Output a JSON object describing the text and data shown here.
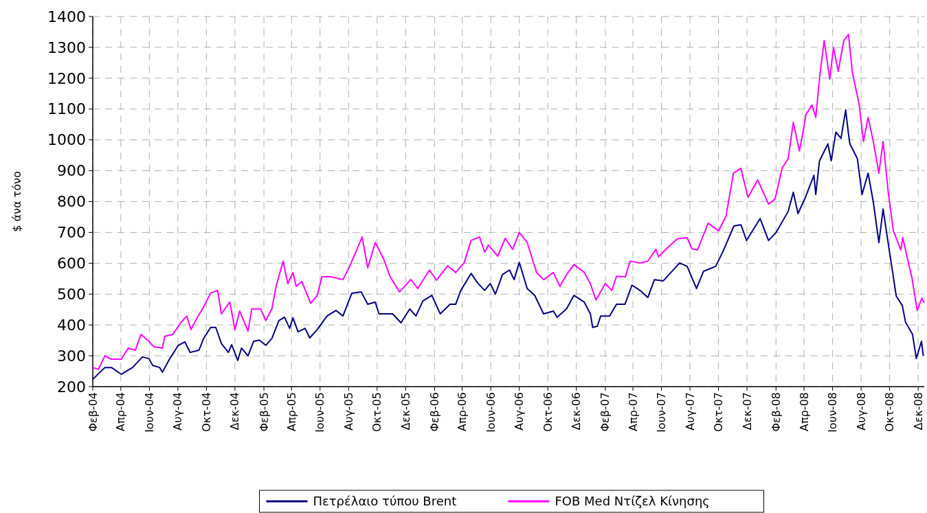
{
  "chart_data": {
    "type": "line",
    "ylabel": "$ άνα τόνο",
    "xlim": [
      "2004-02-01",
      "2008-12-14"
    ],
    "ylim": [
      200,
      1400
    ],
    "yticks": [
      200,
      300,
      400,
      500,
      600,
      700,
      800,
      900,
      1000,
      1100,
      1200,
      1300,
      1400
    ],
    "xticks": [
      {
        "value": "2004-02-01",
        "label": "Φεβ-04"
      },
      {
        "value": "2004-04-01",
        "label": "Απρ-04"
      },
      {
        "value": "2004-06-01",
        "label": "Ιουν-04"
      },
      {
        "value": "2004-08-01",
        "label": "Αυγ-04"
      },
      {
        "value": "2004-10-01",
        "label": "Οκτ-04"
      },
      {
        "value": "2004-12-01",
        "label": "Δεκ-04"
      },
      {
        "value": "2005-02-01",
        "label": "Φεβ-05"
      },
      {
        "value": "2005-04-01",
        "label": "Απρ-05"
      },
      {
        "value": "2005-06-01",
        "label": "Ιουν-05"
      },
      {
        "value": "2005-08-01",
        "label": "Αυγ-05"
      },
      {
        "value": "2005-10-01",
        "label": "Οκτ-05"
      },
      {
        "value": "2005-12-01",
        "label": "Δεκ-05"
      },
      {
        "value": "2006-02-01",
        "label": "Φεβ-06"
      },
      {
        "value": "2006-04-01",
        "label": "Απρ-06"
      },
      {
        "value": "2006-06-01",
        "label": "Ιουν-06"
      },
      {
        "value": "2006-08-01",
        "label": "Αυγ-06"
      },
      {
        "value": "2006-10-01",
        "label": "Οκτ-06"
      },
      {
        "value": "2006-12-01",
        "label": "Δεκ-06"
      },
      {
        "value": "2007-02-01",
        "label": "Φεβ-07"
      },
      {
        "value": "2007-04-01",
        "label": "Απρ-07"
      },
      {
        "value": "2007-06-01",
        "label": "Ιουν-07"
      },
      {
        "value": "2007-08-01",
        "label": "Αυγ-07"
      },
      {
        "value": "2007-10-01",
        "label": "Οκτ-07"
      },
      {
        "value": "2007-12-01",
        "label": "Δεκ-07"
      },
      {
        "value": "2008-02-01",
        "label": "Φεβ-08"
      },
      {
        "value": "2008-04-01",
        "label": "Απρ-08"
      },
      {
        "value": "2008-06-01",
        "label": "Ιουν-08"
      },
      {
        "value": "2008-08-01",
        "label": "Αυγ-08"
      },
      {
        "value": "2008-10-01",
        "label": "Οκτ-08"
      },
      {
        "value": "2008-12-01",
        "label": "Δεκ-08"
      }
    ],
    "grid": true,
    "legend": "bottom",
    "marker": "none",
    "line_style": "solid",
    "series": [
      {
        "name": "Πετρέλαιο τύπου Brent",
        "color": "#000080",
        "x": [
          "2004-02-01",
          "2004-02-27",
          "2004-03-12",
          "2004-04-02",
          "2004-04-26",
          "2004-05-17",
          "2004-05-31",
          "2004-06-08",
          "2004-06-23",
          "2004-06-29",
          "2004-07-14",
          "2004-08-02",
          "2004-08-16",
          "2004-08-27",
          "2004-09-15",
          "2004-09-25",
          "2004-10-10",
          "2004-10-21",
          "2004-11-02",
          "2004-11-17",
          "2004-11-24",
          "2004-12-07",
          "2004-12-15",
          "2004-12-29",
          "2005-01-10",
          "2005-01-22",
          "2005-02-05",
          "2005-02-18",
          "2005-03-05",
          "2005-03-17",
          "2005-03-28",
          "2005-04-04",
          "2005-04-15",
          "2005-04-30",
          "2005-05-10",
          "2005-05-26",
          "2005-06-16",
          "2005-07-05",
          "2005-07-20",
          "2005-08-08",
          "2005-08-28",
          "2005-09-11",
          "2005-09-27",
          "2005-10-05",
          "2005-11-03",
          "2005-11-21",
          "2005-12-10",
          "2005-12-23",
          "2006-01-07",
          "2006-01-26",
          "2006-02-13",
          "2006-03-06",
          "2006-03-18",
          "2006-03-29",
          "2006-04-20",
          "2006-05-04",
          "2006-05-19",
          "2006-05-31",
          "2006-06-11",
          "2006-06-26",
          "2006-07-11",
          "2006-07-21",
          "2006-08-01",
          "2006-08-18",
          "2006-09-03",
          "2006-09-22",
          "2006-10-13",
          "2006-10-21",
          "2006-11-10",
          "2006-11-26",
          "2006-12-18",
          "2006-12-31",
          "2007-01-05",
          "2007-01-15",
          "2007-01-22",
          "2007-02-10",
          "2007-02-25",
          "2007-03-15",
          "2007-03-30",
          "2007-04-16",
          "2007-05-03",
          "2007-05-17",
          "2007-06-05",
          "2007-07-10",
          "2007-07-26",
          "2007-08-15",
          "2007-08-30",
          "2007-09-25",
          "2007-10-10",
          "2007-11-03",
          "2007-11-18",
          "2007-11-30",
          "2007-12-29",
          "2008-01-16",
          "2008-02-01",
          "2008-02-27",
          "2008-03-09",
          "2008-03-19",
          "2008-04-04",
          "2008-04-22",
          "2008-04-26",
          "2008-05-04",
          "2008-05-22",
          "2008-05-29",
          "2008-06-08",
          "2008-06-19",
          "2008-06-29",
          "2008-07-05",
          "2008-07-08",
          "2008-07-24",
          "2008-08-03",
          "2008-08-16",
          "2008-08-27",
          "2008-09-08",
          "2008-09-17",
          "2008-09-27",
          "2008-10-08",
          "2008-10-15",
          "2008-10-28",
          "2008-11-04",
          "2008-11-19",
          "2008-11-27",
          "2008-12-08",
          "2008-12-12"
        ],
        "values": [
          224,
          262,
          262,
          240,
          262,
          296,
          291,
          269,
          262,
          247,
          289,
          334,
          345,
          311,
          318,
          356,
          392,
          392,
          340,
          311,
          336,
          285,
          325,
          300,
          347,
          351,
          334,
          356,
          414,
          425,
          389,
          423,
          378,
          389,
          358,
          385,
          429,
          447,
          429,
          503,
          507,
          467,
          474,
          436,
          436,
          407,
          452,
          429,
          478,
          496,
          436,
          467,
          467,
          512,
          567,
          536,
          512,
          534,
          500,
          563,
          578,
          547,
          603,
          518,
          496,
          436,
          445,
          425,
          452,
          496,
          474,
          436,
          392,
          396,
          429,
          429,
          467,
          467,
          529,
          512,
          489,
          547,
          543,
          601,
          590,
          518,
          574,
          590,
          636,
          721,
          725,
          674,
          745,
          674,
          699,
          768,
          830,
          761,
          814,
          885,
          823,
          932,
          987,
          932,
          1025,
          1005,
          1097,
          1019,
          987,
          939,
          823,
          892,
          799,
          667,
          776,
          674,
          565,
          494,
          463,
          409,
          369,
          291,
          347,
          300
        ]
      },
      {
        "name": "FOB Med Ντίζελ Κίνησης",
        "color": "#ff00ff",
        "x": [
          "2004-02-01",
          "2004-02-13",
          "2004-02-27",
          "2004-03-12",
          "2004-04-02",
          "2004-04-17",
          "2004-05-02",
          "2004-05-14",
          "2004-05-31",
          "2004-06-11",
          "2004-06-29",
          "2004-07-04",
          "2004-07-21",
          "2004-08-07",
          "2004-08-20",
          "2004-08-29",
          "2004-09-11",
          "2004-09-25",
          "2004-10-10",
          "2004-10-25",
          "2004-11-02",
          "2004-11-20",
          "2004-12-01",
          "2004-12-11",
          "2004-12-29",
          "2005-01-06",
          "2005-01-25",
          "2005-02-05",
          "2005-02-18",
          "2005-02-27",
          "2005-03-14",
          "2005-03-24",
          "2005-04-04",
          "2005-04-11",
          "2005-04-23",
          "2005-05-12",
          "2005-05-26",
          "2005-06-05",
          "2005-06-24",
          "2005-07-20",
          "2005-08-04",
          "2005-08-30",
          "2005-09-11",
          "2005-09-27",
          "2005-10-15",
          "2005-10-29",
          "2005-11-18",
          "2005-12-12",
          "2005-12-27",
          "2006-01-21",
          "2006-02-05",
          "2006-03-01",
          "2006-03-18",
          "2006-04-05",
          "2006-04-20",
          "2006-05-08",
          "2006-05-19",
          "2006-05-27",
          "2006-06-16",
          "2006-07-02",
          "2006-07-18",
          "2006-08-01",
          "2006-08-18",
          "2006-09-07",
          "2006-09-22",
          "2006-10-13",
          "2006-10-27",
          "2006-11-10",
          "2006-11-26",
          "2006-12-18",
          "2006-12-31",
          "2007-01-12",
          "2007-02-01",
          "2007-02-15",
          "2007-02-25",
          "2007-03-16",
          "2007-03-26",
          "2007-04-16",
          "2007-05-03",
          "2007-05-20",
          "2007-05-26",
          "2007-06-15",
          "2007-07-05",
          "2007-07-26",
          "2007-08-05",
          "2007-08-17",
          "2007-09-09",
          "2007-10-01",
          "2007-10-17",
          "2007-11-02",
          "2007-11-18",
          "2007-12-03",
          "2007-12-24",
          "2008-01-16",
          "2008-01-30",
          "2008-02-14",
          "2008-02-27",
          "2008-03-09",
          "2008-03-22",
          "2008-03-29",
          "2008-04-05",
          "2008-04-18",
          "2008-04-26",
          "2008-05-05",
          "2008-05-14",
          "2008-05-26",
          "2008-06-03",
          "2008-06-13",
          "2008-06-25",
          "2008-07-05",
          "2008-07-13",
          "2008-07-28",
          "2008-08-06",
          "2008-08-16",
          "2008-08-27",
          "2008-09-08",
          "2008-09-17",
          "2008-09-28",
          "2008-10-09",
          "2008-10-25",
          "2008-10-29",
          "2008-11-18",
          "2008-11-29",
          "2008-12-09",
          "2008-12-14"
        ],
        "values": [
          262,
          256,
          300,
          289,
          289,
          325,
          318,
          369,
          347,
          329,
          325,
          363,
          369,
          407,
          429,
          385,
          423,
          458,
          503,
          512,
          436,
          474,
          385,
          445,
          380,
          452,
          452,
          414,
          452,
          525,
          607,
          534,
          570,
          525,
          541,
          470,
          496,
          556,
          556,
          547,
          592,
          685,
          585,
          667,
          614,
          556,
          507,
          547,
          518,
          578,
          545,
          592,
          570,
          601,
          674,
          685,
          636,
          659,
          623,
          681,
          645,
          700,
          667,
          570,
          547,
          570,
          525,
          563,
          596,
          570,
          534,
          481,
          534,
          512,
          558,
          556,
          607,
          601,
          607,
          645,
          621,
          652,
          679,
          683,
          647,
          643,
          730,
          705,
          752,
          892,
          908,
          814,
          870,
          792,
          808,
          908,
          939,
          1057,
          964,
          1019,
          1082,
          1113,
          1073,
          1213,
          1322,
          1197,
          1300,
          1222,
          1322,
          1342,
          1222,
          1113,
          995,
          1073,
          995,
          892,
          995,
          830,
          705,
          643,
          683,
          550,
          447,
          487,
          472
        ]
      }
    ]
  }
}
